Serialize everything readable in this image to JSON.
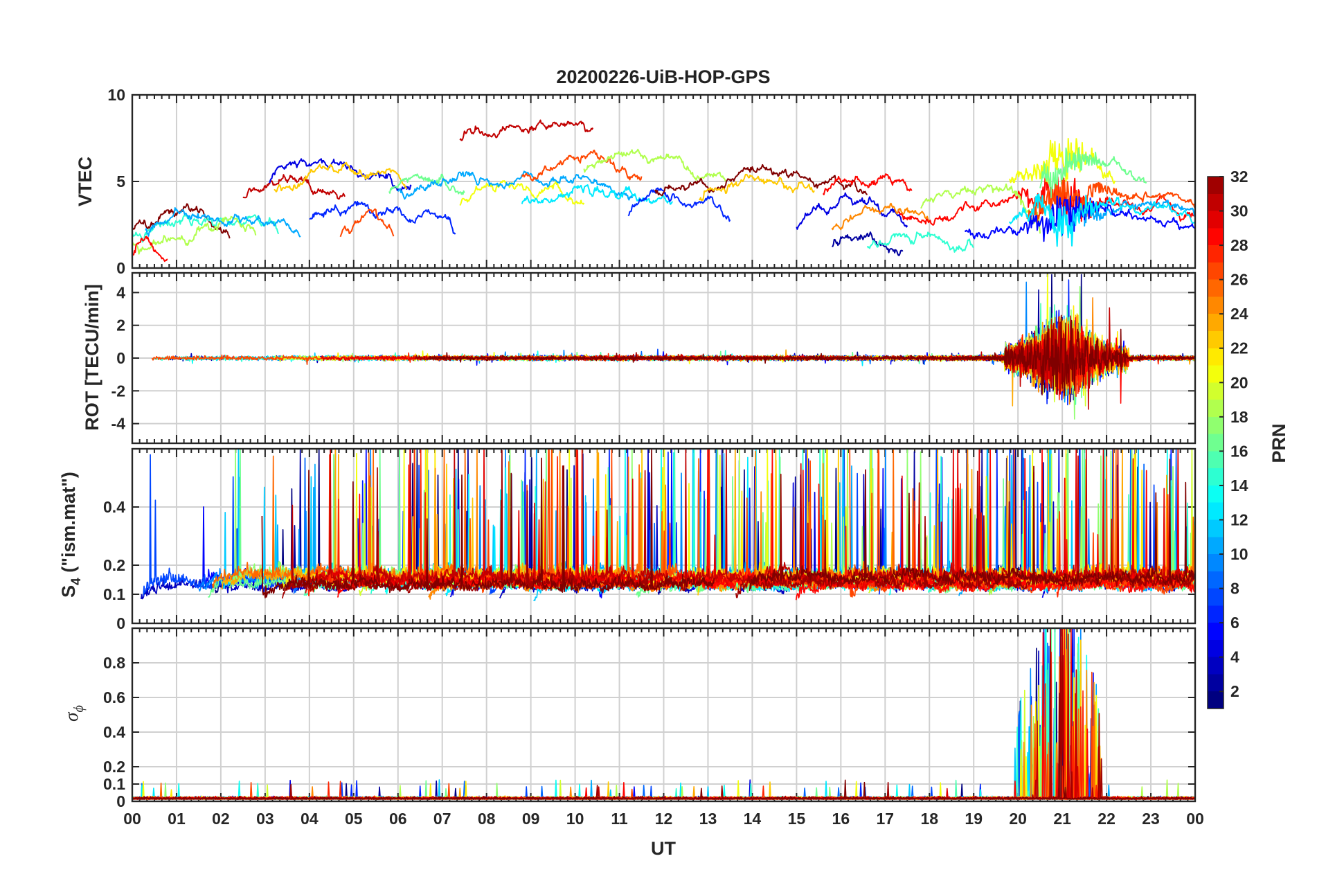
{
  "chart_data": {
    "type": "line",
    "title": "20200226-UiB-HOP-GPS",
    "xlabel": "UT",
    "x_ticks": [
      "00",
      "01",
      "02",
      "03",
      "04",
      "05",
      "06",
      "07",
      "08",
      "09",
      "10",
      "11",
      "12",
      "13",
      "14",
      "15",
      "16",
      "17",
      "18",
      "19",
      "20",
      "21",
      "22",
      "23",
      "00"
    ],
    "xlim_hours": [
      0,
      24
    ],
    "panels": [
      {
        "ylabel": "VTEC",
        "ylim": [
          0,
          10
        ],
        "y_ticks": [
          {
            "v": 0,
            "label": "0"
          },
          {
            "v": 5,
            "label": "5"
          },
          {
            "v": 10,
            "label": "10"
          }
        ]
      },
      {
        "ylabel": "ROT [TECU/min]",
        "ylim": [
          -5.2,
          5.2
        ],
        "y_ticks": [
          {
            "v": -4,
            "label": "-4"
          },
          {
            "v": -2,
            "label": "-2"
          },
          {
            "v": 0,
            "label": "0"
          },
          {
            "v": 2,
            "label": "2"
          },
          {
            "v": 4,
            "label": "4"
          }
        ]
      },
      {
        "ylabel_main": "S",
        "ylabel_sub": "4",
        "ylabel_rest": " (\"ism.mat\")",
        "ylim": [
          0,
          0.6
        ],
        "y_ticks": [
          {
            "v": 0,
            "label": "0"
          },
          {
            "v": 0.1,
            "label": "0.1"
          },
          {
            "v": 0.2,
            "label": "0.2"
          },
          {
            "v": 0.4,
            "label": "0.4"
          }
        ]
      },
      {
        "ylabel_main": "σ",
        "ylabel_sub": "ϕ",
        "ylim": [
          0,
          1
        ],
        "y_ticks": [
          {
            "v": 0,
            "label": "0"
          },
          {
            "v": 0.1,
            "label": "0.1"
          },
          {
            "v": 0.2,
            "label": "0.2"
          },
          {
            "v": 0.4,
            "label": "0.4"
          },
          {
            "v": 0.6,
            "label": "0.6"
          },
          {
            "v": 0.8,
            "label": "0.8"
          }
        ]
      }
    ],
    "colorbar": {
      "label": "PRN",
      "range": [
        1,
        32
      ],
      "ticks": [
        "2",
        "4",
        "6",
        "8",
        "10",
        "12",
        "14",
        "16",
        "18",
        "20",
        "22",
        "24",
        "26",
        "28",
        "30",
        "32"
      ],
      "colormap": "jet"
    },
    "series_note": "32 GPS satellites (PRN 1-32) colored by PRN; values approximated from the figure",
    "vtec_segments": [
      {
        "prn": 32,
        "t0": 0.0,
        "t1": 2.2,
        "v": 2.7
      },
      {
        "prn": 14,
        "t0": 0.0,
        "t1": 3.3,
        "v": 2.6
      },
      {
        "prn": 18,
        "t0": 0.0,
        "t1": 2.8,
        "v": 1.8
      },
      {
        "prn": 28,
        "t0": 0.0,
        "t1": 0.8,
        "v": 1.4
      },
      {
        "prn": 10,
        "t0": 0.3,
        "t1": 3.8,
        "v": 2.8
      },
      {
        "prn": 30,
        "t0": 2.5,
        "t1": 4.8,
        "v": 4.6
      },
      {
        "prn": 4,
        "t0": 3.1,
        "t1": 6.3,
        "v": 5.4
      },
      {
        "prn": 22,
        "t0": 3.2,
        "t1": 6.2,
        "v": 5.0
      },
      {
        "prn": 6,
        "t0": 4.0,
        "t1": 7.3,
        "v": 3.2
      },
      {
        "prn": 26,
        "t0": 4.7,
        "t1": 5.9,
        "v": 2.5
      },
      {
        "prn": 16,
        "t0": 5.8,
        "t1": 7.5,
        "v": 5.0
      },
      {
        "prn": 30,
        "t0": 7.4,
        "t1": 10.4,
        "v": 8.1
      },
      {
        "prn": 20,
        "t0": 7.4,
        "t1": 10.2,
        "v": 4.3
      },
      {
        "prn": 10,
        "t0": 6.0,
        "t1": 11.3,
        "v": 5.0
      },
      {
        "prn": 26,
        "t0": 8.8,
        "t1": 11.5,
        "v": 5.7
      },
      {
        "prn": 18,
        "t0": 10.2,
        "t1": 13.4,
        "v": 6.0
      },
      {
        "prn": 12,
        "t0": 8.8,
        "t1": 12.2,
        "v": 4.2
      },
      {
        "prn": 6,
        "t0": 11.2,
        "t1": 13.5,
        "v": 3.5
      },
      {
        "prn": 32,
        "t0": 11.8,
        "t1": 16.6,
        "v": 5.0
      },
      {
        "prn": 22,
        "t0": 12.8,
        "t1": 15.4,
        "v": 4.6
      },
      {
        "prn": 4,
        "t0": 15.0,
        "t1": 17.5,
        "v": 3.0
      },
      {
        "prn": 28,
        "t0": 15.6,
        "t1": 17.6,
        "v": 4.8
      },
      {
        "prn": 24,
        "t0": 15.8,
        "t1": 18.0,
        "v": 2.8
      },
      {
        "prn": 2,
        "t0": 15.8,
        "t1": 17.4,
        "v": 1.6
      },
      {
        "prn": 14,
        "t0": 16.6,
        "t1": 19.0,
        "v": 1.8
      },
      {
        "prn": 28,
        "t0": 17.3,
        "t1": 24.0,
        "v": 3.7
      },
      {
        "prn": 18,
        "t0": 17.8,
        "t1": 20.5,
        "v": 4.0
      },
      {
        "prn": 20,
        "t0": 19.8,
        "t1": 22.2,
        "v": 5.5
      },
      {
        "prn": 16,
        "t0": 20.5,
        "t1": 22.9,
        "v": 5.5
      },
      {
        "prn": 26,
        "t0": 20.2,
        "t1": 24.0,
        "v": 3.6
      },
      {
        "prn": 10,
        "t0": 21.5,
        "t1": 24.0,
        "v": 3.3
      },
      {
        "prn": 5,
        "t0": 18.8,
        "t1": 24.0,
        "v": 2.6
      },
      {
        "prn": 12,
        "t0": 19.8,
        "t1": 24.0,
        "v": 3.2
      }
    ]
  }
}
